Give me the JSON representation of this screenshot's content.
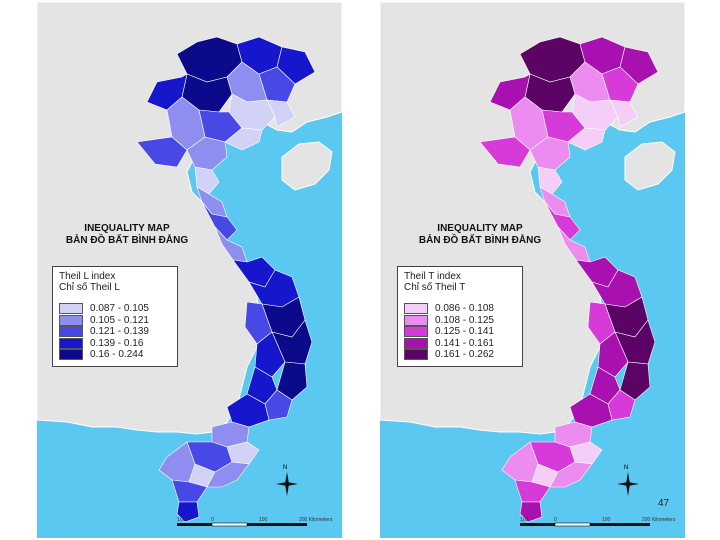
{
  "left_map": {
    "title_en": "INEQUALITY MAP",
    "title_vi": "BẢN ĐỒ BẤT BÌNH ĐẲNG",
    "legend_title_en": "Theil L index",
    "legend_title_vi": "Chỉ số Theil L",
    "classes": [
      {
        "label": "0.087 - 0.105",
        "color": "#d2d2f7"
      },
      {
        "label": "0.105 - 0.121",
        "color": "#8e8ef0"
      },
      {
        "label": "0.121 - 0.139",
        "color": "#4848e6"
      },
      {
        "label": "0.139 - 0.16",
        "color": "#1616cc"
      },
      {
        "label": "0.16 - 0.244",
        "color": "#0a0a8a"
      }
    ],
    "scale_labels": [
      "100",
      "0",
      "100",
      "200 Kilometers"
    ]
  },
  "right_map": {
    "title_en": "INEQUALITY MAP",
    "title_vi": "BẢN ĐỒ BẤT BÌNH ĐẲNG",
    "legend_title_en": "Theil T index",
    "legend_title_vi": "Chỉ số Theil T",
    "classes": [
      {
        "label": "0.086 - 0.108",
        "color": "#f5cef7"
      },
      {
        "label": "0.108 - 0.125",
        "color": "#ec8cf0"
      },
      {
        "label": "0.125 - 0.141",
        "color": "#d63ad8"
      },
      {
        "label": "0.141 - 0.161",
        "color": "#a810b0"
      },
      {
        "label": "0.161 - 0.262",
        "color": "#5c0466"
      }
    ],
    "scale_labels": [
      "100",
      "0",
      "100",
      "200 Kilometers"
    ]
  },
  "north_label": "N",
  "page_number": "47",
  "colors": {
    "sea": "#5ac8f0",
    "land": "#e4e4e4",
    "border": "#ffffff"
  }
}
